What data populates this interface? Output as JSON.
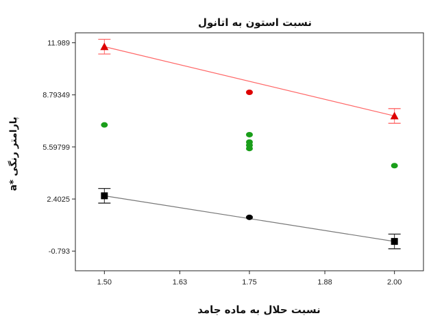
{
  "chart_data": {
    "type": "scatter",
    "title": "نسبت استون به اتانول",
    "xlabel": "نسبت حلال به ماده جامد",
    "ylabel": "پارامتر رنگی *a",
    "xlim": [
      1.45,
      2.05
    ],
    "ylim": [
      -2.0,
      12.6
    ],
    "xticks": [
      1.5,
      1.63,
      1.75,
      1.88,
      2.0
    ],
    "xtick_labels": [
      "1.50",
      "1.63",
      "1.75",
      "1.88",
      "2.00"
    ],
    "yticks": [
      -0.793,
      2.4025,
      5.59799,
      8.79349,
      11.989
    ],
    "ytick_labels": [
      "-0.793",
      "2.4025",
      "5.59799",
      "8.79349",
      "11.989"
    ],
    "colors": {
      "upper": "#dd0000",
      "upper_line": "#ff6666",
      "middle": "#1a9e1a",
      "lower": "#000000",
      "lower_line": "#777777"
    },
    "series": [
      {
        "key": "upper",
        "marker": "triangle",
        "fit_line": [
          [
            1.5,
            11.75
          ],
          [
            2.0,
            7.5
          ]
        ],
        "design_points": [
          {
            "x": 1.5,
            "y": 11.75,
            "err": 0.45
          },
          {
            "x": 2.0,
            "y": 7.5,
            "err": 0.45
          }
        ],
        "points": [
          {
            "x": 1.75,
            "y": 8.95
          }
        ]
      },
      {
        "key": "middle",
        "marker": "circle",
        "points": [
          {
            "x": 1.5,
            "y": 6.95
          },
          {
            "x": 1.75,
            "y": 6.35
          },
          {
            "x": 1.75,
            "y": 5.9
          },
          {
            "x": 1.75,
            "y": 5.7
          },
          {
            "x": 1.75,
            "y": 5.5
          },
          {
            "x": 2.0,
            "y": 4.45
          }
        ]
      },
      {
        "key": "lower",
        "marker": "square",
        "fit_line": [
          [
            1.5,
            2.6
          ],
          [
            2.0,
            -0.2
          ]
        ],
        "design_points": [
          {
            "x": 1.5,
            "y": 2.6,
            "err": 0.45
          },
          {
            "x": 2.0,
            "y": -0.2,
            "err": 0.45
          }
        ],
        "points": [
          {
            "x": 1.75,
            "y": 1.28
          }
        ]
      }
    ]
  }
}
